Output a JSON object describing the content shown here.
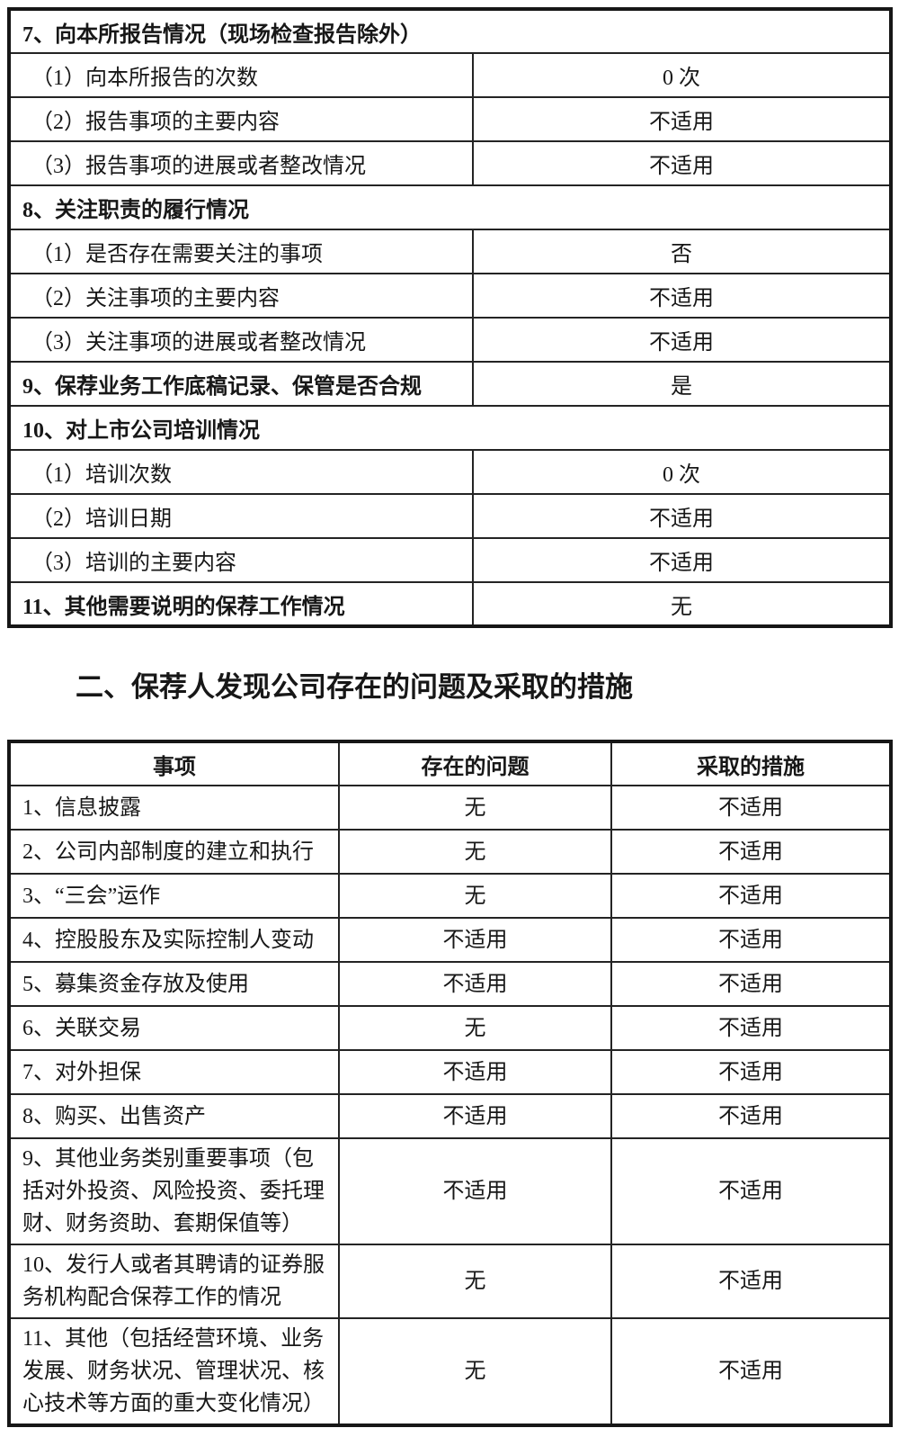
{
  "section_heading": "二、保荐人发现公司存在的问题及采取的措施",
  "table1": {
    "rows": [
      {
        "type": "section",
        "label": "7、向本所报告情况（现场检查报告除外）",
        "value": ""
      },
      {
        "type": "item",
        "label": "（1）向本所报告的次数",
        "value": "0 次"
      },
      {
        "type": "item",
        "label": "（2）报告事项的主要内容",
        "value": "不适用"
      },
      {
        "type": "item",
        "label": "（3）报告事项的进展或者整改情况",
        "value": "不适用"
      },
      {
        "type": "section",
        "label": "8、关注职责的履行情况",
        "value": ""
      },
      {
        "type": "item",
        "label": "（1）是否存在需要关注的事项",
        "value": "否"
      },
      {
        "type": "item",
        "label": "（2）关注事项的主要内容",
        "value": "不适用"
      },
      {
        "type": "item",
        "label": "（3）关注事项的进展或者整改情况",
        "value": "不适用"
      },
      {
        "type": "section-item",
        "label": "9、保荐业务工作底稿记录、保管是否合规",
        "value": "是"
      },
      {
        "type": "section",
        "label": "10、对上市公司培训情况",
        "value": ""
      },
      {
        "type": "item",
        "label": "（1）培训次数",
        "value": "0 次"
      },
      {
        "type": "item",
        "label": "（2）培训日期",
        "value": "不适用"
      },
      {
        "type": "item",
        "label": "（3）培训的主要内容",
        "value": "不适用"
      },
      {
        "type": "section-item",
        "label": "11、其他需要说明的保荐工作情况",
        "value": "无"
      }
    ]
  },
  "table2": {
    "headers": [
      "事项",
      "存在的问题",
      "采取的措施"
    ],
    "rows": [
      [
        "1、信息披露",
        "无",
        "不适用"
      ],
      [
        "2、公司内部制度的建立和执行",
        "无",
        "不适用"
      ],
      [
        "3、“三会”运作",
        "无",
        "不适用"
      ],
      [
        "4、控股股东及实际控制人变动",
        "不适用",
        "不适用"
      ],
      [
        "5、募集资金存放及使用",
        "不适用",
        "不适用"
      ],
      [
        "6、关联交易",
        "无",
        "不适用"
      ],
      [
        "7、对外担保",
        "不适用",
        "不适用"
      ],
      [
        "8、购买、出售资产",
        "不适用",
        "不适用"
      ],
      [
        "9、其他业务类别重要事项（包括对外投资、风险投资、委托理财、财务资助、套期保值等）",
        "不适用",
        "不适用"
      ],
      [
        "10、发行人或者其聘请的证券服务机构配合保荐工作的情况",
        "无",
        "不适用"
      ],
      [
        "11、其他（包括经营环境、业务发展、财务状况、管理状况、核心技术等方面的重大变化情况）",
        "无",
        "不适用"
      ]
    ]
  }
}
